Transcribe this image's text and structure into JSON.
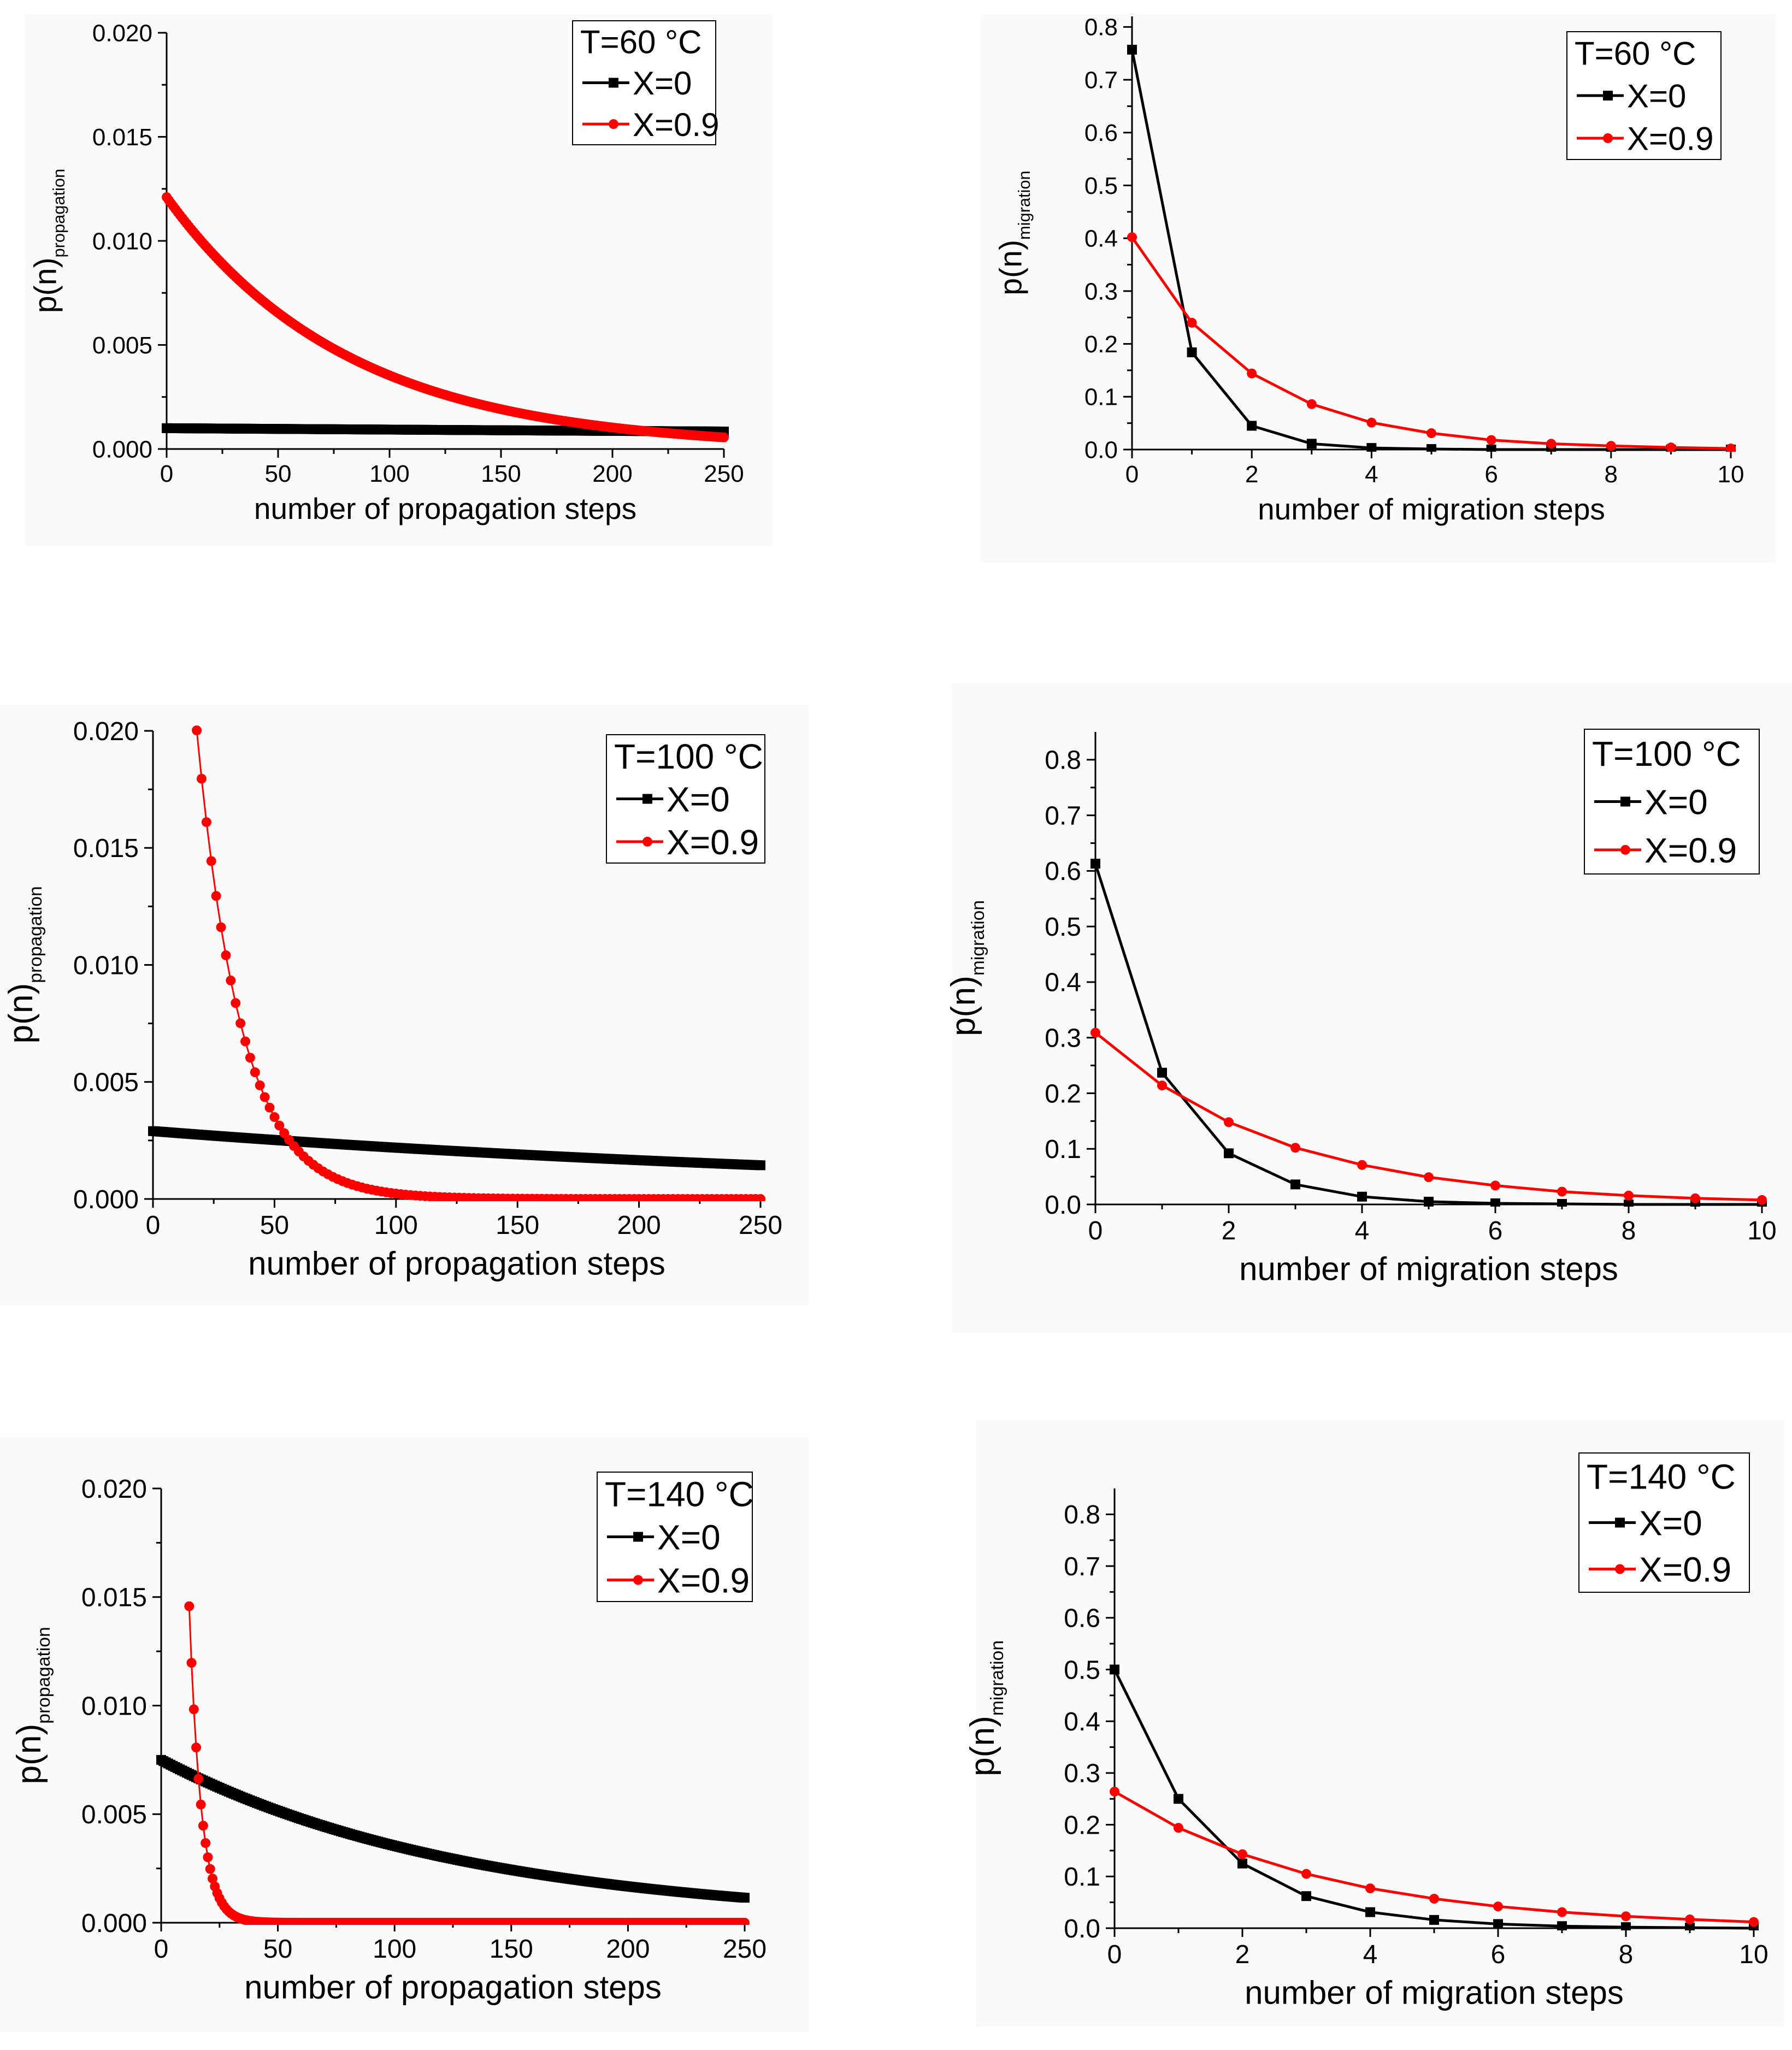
{
  "figure": {
    "colors": {
      "black": "#000000",
      "red": "#ff0000"
    },
    "marker_names": {
      "X=0": "square",
      "X=0.9": "circle"
    }
  },
  "chart_data": [
    {
      "id": "prop60",
      "type": "line",
      "kind": "propagation",
      "legend_title": "T=60 °C",
      "legend_position": "top-right",
      "xlabel": "number of propagation steps",
      "ylabel_main": "p(n)",
      "ylabel_sub": "propagation",
      "xlim": [
        0,
        250
      ],
      "ylim": [
        0,
        0.02
      ],
      "xticks": [
        0,
        50,
        100,
        150,
        200,
        250
      ],
      "yticks": [
        0.0,
        0.005,
        0.01,
        0.015,
        0.02
      ],
      "xtick_labels": [
        "0",
        "50",
        "100",
        "150",
        "200",
        "250"
      ],
      "ytick_labels": [
        "0.000",
        "0.005",
        "0.010",
        "0.015",
        "0.020"
      ],
      "series": [
        {
          "name": "X=0",
          "color": "#000000",
          "marker": "square",
          "model": "exp",
          "a": 0.001,
          "k": 0.0007,
          "n_start": 0,
          "n_end": 250,
          "step": 1
        },
        {
          "name": "X=0.9",
          "color": "#ff0000",
          "marker": "circle",
          "model": "exp",
          "a": 0.0121,
          "k": 0.0123,
          "n_start": 0,
          "n_end": 250,
          "step": 1
        }
      ]
    },
    {
      "id": "mig60",
      "type": "line",
      "kind": "migration",
      "legend_title": "T=60 °C",
      "legend_position": "top-right",
      "xlabel": "number of migration steps",
      "ylabel_main": "p(n)",
      "ylabel_sub": "migration",
      "xlim": [
        0,
        10
      ],
      "ylim": [
        0,
        0.82
      ],
      "xticks": [
        0,
        2,
        4,
        6,
        8,
        10
      ],
      "yticks": [
        0.0,
        0.1,
        0.2,
        0.3,
        0.4,
        0.5,
        0.6,
        0.7,
        0.8
      ],
      "xtick_labels": [
        "0",
        "2",
        "4",
        "6",
        "8",
        "10"
      ],
      "ytick_labels": [
        "0.0",
        "0.1",
        "0.2",
        "0.3",
        "0.4",
        "0.5",
        "0.6",
        "0.7",
        "0.8"
      ],
      "series": [
        {
          "name": "X=0",
          "color": "#000000",
          "marker": "square",
          "x": [
            0,
            1,
            2,
            3,
            4,
            5,
            6,
            7,
            8,
            9,
            10
          ],
          "y": [
            0.757,
            0.184,
            0.045,
            0.011,
            0.003,
            0.001,
            0.0,
            0.0,
            0.0,
            0.0,
            0.0
          ]
        },
        {
          "name": "X=0.9",
          "color": "#ff0000",
          "marker": "circle",
          "x": [
            0,
            1,
            2,
            3,
            4,
            5,
            6,
            7,
            8,
            9,
            10
          ],
          "y": [
            0.402,
            0.24,
            0.144,
            0.086,
            0.051,
            0.031,
            0.018,
            0.011,
            0.007,
            0.004,
            0.002
          ]
        }
      ]
    },
    {
      "id": "prop100",
      "type": "line",
      "kind": "propagation",
      "legend_title": "T=100 °C",
      "legend_position": "top-right",
      "xlabel": "number of propagation steps",
      "ylabel_main": "p(n)",
      "ylabel_sub": "propagation",
      "xlim": [
        0,
        250
      ],
      "ylim": [
        0,
        0.02
      ],
      "xticks": [
        0,
        50,
        100,
        150,
        200,
        250
      ],
      "yticks": [
        0.0,
        0.005,
        0.01,
        0.015,
        0.02
      ],
      "xtick_labels": [
        "0",
        "50",
        "100",
        "150",
        "200",
        "250"
      ],
      "ytick_labels": [
        "0.000",
        "0.005",
        "0.010",
        "0.015",
        "0.020"
      ],
      "series": [
        {
          "name": "X=0",
          "color": "#000000",
          "marker": "square",
          "model": "exp",
          "a": 0.0029,
          "k": 0.0028,
          "n_start": 0,
          "n_end": 250,
          "step": 1
        },
        {
          "name": "X=0.9",
          "color": "#ff0000",
          "marker": "circle",
          "model": "exp",
          "a": 0.0534,
          "k": 0.0545,
          "n_start": 18,
          "n_end": 250,
          "step": 2
        }
      ]
    },
    {
      "id": "mig100",
      "type": "line",
      "kind": "migration",
      "legend_title": "T=100 °C",
      "legend_position": "top-right",
      "xlabel": "number of migration steps",
      "ylabel_main": "p(n)",
      "ylabel_sub": "migration",
      "xlim": [
        0,
        10
      ],
      "ylim": [
        0,
        0.85
      ],
      "xticks": [
        0,
        2,
        4,
        6,
        8,
        10
      ],
      "yticks": [
        0.0,
        0.1,
        0.2,
        0.3,
        0.4,
        0.5,
        0.6,
        0.7,
        0.8
      ],
      "xtick_labels": [
        "0",
        "2",
        "4",
        "6",
        "8",
        "10"
      ],
      "ytick_labels": [
        "0.0",
        "0.1",
        "0.2",
        "0.3",
        "0.4",
        "0.5",
        "0.6",
        "0.7",
        "0.8"
      ],
      "series": [
        {
          "name": "X=0",
          "color": "#000000",
          "marker": "square",
          "x": [
            0,
            1,
            2,
            3,
            4,
            5,
            6,
            7,
            8,
            9,
            10
          ],
          "y": [
            0.613,
            0.237,
            0.092,
            0.036,
            0.014,
            0.005,
            0.002,
            0.001,
            0.0,
            0.0,
            0.0
          ]
        },
        {
          "name": "X=0.9",
          "color": "#ff0000",
          "marker": "circle",
          "x": [
            0,
            1,
            2,
            3,
            4,
            5,
            6,
            7,
            8,
            9,
            10
          ],
          "y": [
            0.309,
            0.214,
            0.148,
            0.102,
            0.071,
            0.049,
            0.034,
            0.023,
            0.016,
            0.011,
            0.008
          ]
        }
      ]
    },
    {
      "id": "prop140",
      "type": "line",
      "kind": "propagation",
      "legend_title": "T=140 °C",
      "legend_position": "top-right",
      "xlabel": "number of propagation steps",
      "ylabel_main": "p(n)",
      "ylabel_sub": "propagation",
      "xlim": [
        0,
        250
      ],
      "ylim": [
        0,
        0.02
      ],
      "xticks": [
        0,
        50,
        100,
        150,
        200,
        250
      ],
      "yticks": [
        0.0,
        0.005,
        0.01,
        0.015,
        0.02
      ],
      "xtick_labels": [
        "0",
        "50",
        "100",
        "150",
        "200",
        "250"
      ],
      "ytick_labels": [
        "0.000",
        "0.005",
        "0.010",
        "0.015",
        "0.020"
      ],
      "series": [
        {
          "name": "X=0",
          "color": "#000000",
          "marker": "square",
          "model": "exp",
          "a": 0.0075,
          "k": 0.0075,
          "n_start": 0,
          "n_end": 250,
          "step": 1
        },
        {
          "name": "X=0.9",
          "color": "#ff0000",
          "marker": "circle",
          "model": "exp",
          "a": 0.155,
          "k": 0.197,
          "n_start": 12,
          "n_end": 250,
          "step": 1
        }
      ]
    },
    {
      "id": "mig140",
      "type": "line",
      "kind": "migration",
      "legend_title": "T=140 °C",
      "legend_position": "top-right",
      "xlabel": "number of migration steps",
      "ylabel_main": "p(n)",
      "ylabel_sub": "migration",
      "xlim": [
        0,
        10
      ],
      "ylim": [
        0,
        0.85
      ],
      "xticks": [
        0,
        2,
        4,
        6,
        8,
        10
      ],
      "yticks": [
        0.0,
        0.1,
        0.2,
        0.3,
        0.4,
        0.5,
        0.6,
        0.7,
        0.8
      ],
      "xtick_labels": [
        "0",
        "2",
        "4",
        "6",
        "8",
        "10"
      ],
      "ytick_labels": [
        "0.0",
        "0.1",
        "0.2",
        "0.3",
        "0.4",
        "0.5",
        "0.6",
        "0.7",
        "0.8"
      ],
      "series": [
        {
          "name": "X=0",
          "color": "#000000",
          "marker": "square",
          "x": [
            0,
            1,
            2,
            3,
            4,
            5,
            6,
            7,
            8,
            9,
            10
          ],
          "y": [
            0.5,
            0.25,
            0.125,
            0.062,
            0.031,
            0.016,
            0.008,
            0.004,
            0.002,
            0.001,
            0.0
          ]
        },
        {
          "name": "X=0.9",
          "color": "#ff0000",
          "marker": "circle",
          "x": [
            0,
            1,
            2,
            3,
            4,
            5,
            6,
            7,
            8,
            9,
            10
          ],
          "y": [
            0.264,
            0.194,
            0.143,
            0.105,
            0.077,
            0.057,
            0.042,
            0.031,
            0.023,
            0.017,
            0.012
          ]
        }
      ]
    }
  ]
}
